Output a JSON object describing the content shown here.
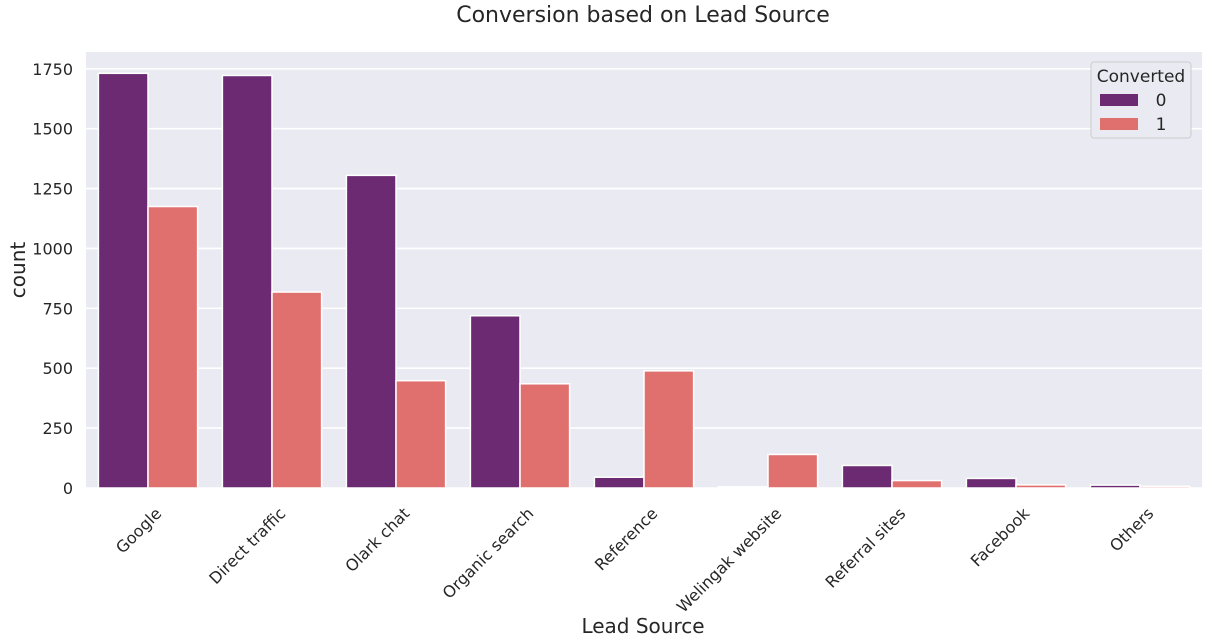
{
  "chart_data": {
    "type": "bar",
    "title": "Conversion based on Lead Source",
    "xlabel": "Lead Source",
    "ylabel": "count",
    "categories": [
      "Google",
      "Direct traffic",
      "Olark chat",
      "Organic search",
      "Reference",
      "Welingak website",
      "Referral sites",
      "Facebook",
      "Others"
    ],
    "series": [
      {
        "name": "0",
        "values": [
          1731,
          1722,
          1305,
          719,
          45,
          5,
          94,
          40,
          12
        ]
      },
      {
        "name": "1",
        "values": [
          1175,
          818,
          448,
          435,
          489,
          140,
          31,
          13,
          7
        ]
      }
    ],
    "ylim": [
      0,
      1820
    ],
    "yticks": [
      0,
      250,
      500,
      750,
      1000,
      1250,
      1500,
      1750
    ],
    "grid": true,
    "legend": {
      "title": "Converted",
      "placement": "top-right"
    },
    "colors": {
      "plot_background": "#eaeaf2",
      "grid": "#ffffff",
      "series": [
        "#6b2a72",
        "#e0706e"
      ]
    }
  }
}
